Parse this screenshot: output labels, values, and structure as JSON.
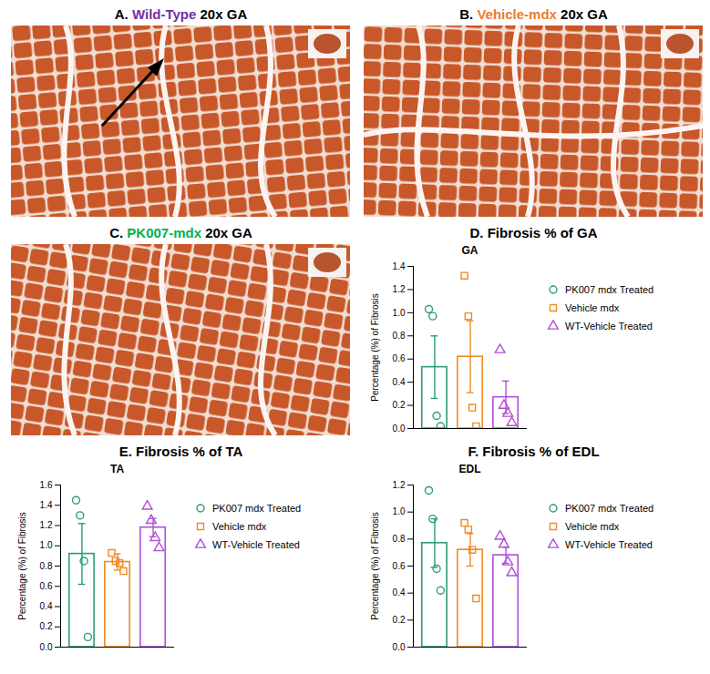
{
  "panels": [
    {
      "letter": "A.",
      "name": "Wild-Type",
      "suffix": "20x GA",
      "color": "#7030a0"
    },
    {
      "letter": "B.",
      "name": "Vehicle-mdx",
      "suffix": "20x GA",
      "color": "#ed7d31"
    },
    {
      "letter": "C.",
      "name": "PK007-mdx",
      "suffix": "20x GA",
      "color": "#00b050"
    }
  ],
  "chart_data": [
    {
      "type": "bar",
      "title": "D. Fibrosis % of GA",
      "subtitle": "GA",
      "y_label": "Percentage (%) of Fibrosis",
      "ylim": [
        0,
        1.4
      ],
      "yticks": [
        {
          "value": 0,
          "label": "0.0"
        },
        {
          "value": 0.2,
          "label": "0.2"
        },
        {
          "value": 0.4,
          "label": "0.4"
        },
        {
          "value": 0.6,
          "label": "0.6"
        },
        {
          "value": 0.8,
          "label": "0.8"
        },
        {
          "value": 1.0,
          "label": "1.0"
        },
        {
          "value": 1.2,
          "label": "1.2"
        },
        {
          "value": 1.4,
          "label": "1.4"
        }
      ],
      "tick_labels": "y",
      "legend": "right",
      "series": [
        {
          "name": "PK007 mdx Treated",
          "color": "#2a9d6f",
          "marker": "circle",
          "values": [
            0.53
          ],
          "errors": [
            0.27
          ],
          "points": [
            1.03,
            0.97,
            0.11,
            0.02
          ]
        },
        {
          "name": "Vehicle mdx",
          "color": "#f08a24",
          "marker": "square",
          "values": [
            0.62
          ],
          "errors": [
            0.31
          ],
          "points": [
            1.32,
            0.97,
            0.18,
            0.02
          ]
        },
        {
          "name": "WT-Vehicle Treated",
          "color": "#b14fd6",
          "marker": "triangle",
          "values": [
            0.27
          ],
          "errors": [
            0.14
          ],
          "points": [
            0.68,
            0.2,
            0.13,
            0.05
          ]
        }
      ]
    },
    {
      "type": "bar",
      "title": "E. Fibrosis % of TA",
      "subtitle": "TA",
      "y_label": "Percentage (%) of Fibrosis",
      "ylim": [
        0,
        1.6
      ],
      "yticks": [
        {
          "value": 0,
          "label": "0.0"
        },
        {
          "value": 0.2,
          "label": "0.2"
        },
        {
          "value": 0.4,
          "label": "0.4"
        },
        {
          "value": 0.6,
          "label": "0.6"
        },
        {
          "value": 0.8,
          "label": "0.8"
        },
        {
          "value": 1.0,
          "label": "1.0"
        },
        {
          "value": 1.2,
          "label": "1.2"
        },
        {
          "value": 1.4,
          "label": "1.4"
        },
        {
          "value": 1.6,
          "label": "1.6"
        }
      ],
      "tick_labels": "y",
      "legend": "right",
      "series": [
        {
          "name": "PK007 mdx Treated",
          "color": "#2a9d6f",
          "marker": "circle",
          "values": [
            0.92
          ],
          "errors": [
            0.3
          ],
          "points": [
            1.45,
            1.3,
            0.85,
            0.1
          ]
        },
        {
          "name": "Vehicle mdx",
          "color": "#f08a24",
          "marker": "square",
          "values": [
            0.84
          ],
          "errors": [
            0.08
          ],
          "points": [
            0.93,
            0.85,
            0.83,
            0.75
          ]
        },
        {
          "name": "WT-Vehicle Treated",
          "color": "#b14fd6",
          "marker": "triangle",
          "values": [
            1.18
          ],
          "errors": [
            0.09
          ],
          "points": [
            1.39,
            1.25,
            1.08,
            0.98
          ]
        }
      ]
    },
    {
      "type": "bar",
      "title": "F. Fibrosis % of EDL",
      "subtitle": "EDL",
      "y_label": "Percentage (%) of Fibrosis",
      "ylim": [
        0,
        1.2
      ],
      "yticks": [
        {
          "value": 0,
          "label": "0.0"
        },
        {
          "value": 0.2,
          "label": "0.2"
        },
        {
          "value": 0.4,
          "label": "0.4"
        },
        {
          "value": 0.6,
          "label": "0.6"
        },
        {
          "value": 0.8,
          "label": "0.8"
        },
        {
          "value": 1.0,
          "label": "1.0"
        },
        {
          "value": 1.2,
          "label": "1.2"
        }
      ],
      "tick_labels": "y",
      "legend": "right",
      "series": [
        {
          "name": "PK007 mdx Treated",
          "color": "#2a9d6f",
          "marker": "circle",
          "values": [
            0.77
          ],
          "errors": [
            0.18
          ],
          "points": [
            1.16,
            0.95,
            0.58,
            0.42
          ]
        },
        {
          "name": "Vehicle mdx",
          "color": "#f08a24",
          "marker": "square",
          "values": [
            0.72
          ],
          "errors": [
            0.12
          ],
          "points": [
            0.92,
            0.87,
            0.72,
            0.36
          ]
        },
        {
          "name": "WT-Vehicle Treated",
          "color": "#b14fd6",
          "marker": "triangle",
          "values": [
            0.68
          ],
          "errors": [
            0.06
          ],
          "points": [
            0.82,
            0.76,
            0.63,
            0.55
          ]
        }
      ]
    }
  ]
}
